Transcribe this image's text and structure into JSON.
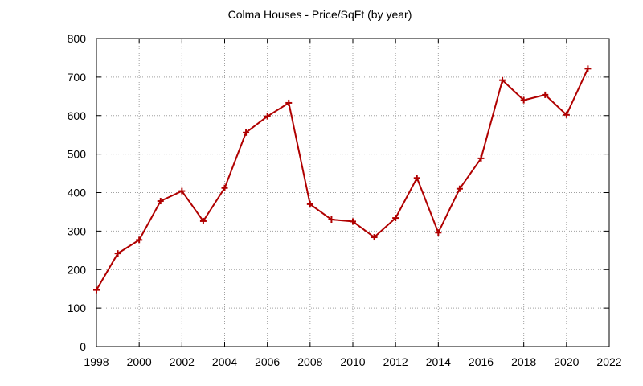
{
  "chart_data": {
    "type": "line",
    "title": "Colma Houses - Price/SqFt (by year)",
    "xlabel": "",
    "ylabel": "",
    "xlim": [
      1998,
      2022
    ],
    "ylim": [
      0,
      800
    ],
    "x_ticks": [
      1998,
      2000,
      2002,
      2004,
      2006,
      2008,
      2010,
      2012,
      2014,
      2016,
      2018,
      2020,
      2022
    ],
    "y_ticks": [
      0,
      100,
      200,
      300,
      400,
      500,
      600,
      700,
      800
    ],
    "grid": true,
    "series": [
      {
        "color": "#b00000",
        "marker": "plus",
        "x": [
          1998,
          1999,
          2000,
          2001,
          2002,
          2003,
          2004,
          2005,
          2006,
          2007,
          2008,
          2009,
          2010,
          2011,
          2012,
          2013,
          2014,
          2015,
          2016,
          2017,
          2018,
          2019,
          2020,
          2021
        ],
        "y": [
          147,
          242,
          277,
          378,
          404,
          326,
          412,
          556,
          598,
          633,
          370,
          330,
          325,
          284,
          334,
          438,
          296,
          410,
          489,
          692,
          640,
          654,
          602,
          722
        ]
      }
    ]
  }
}
